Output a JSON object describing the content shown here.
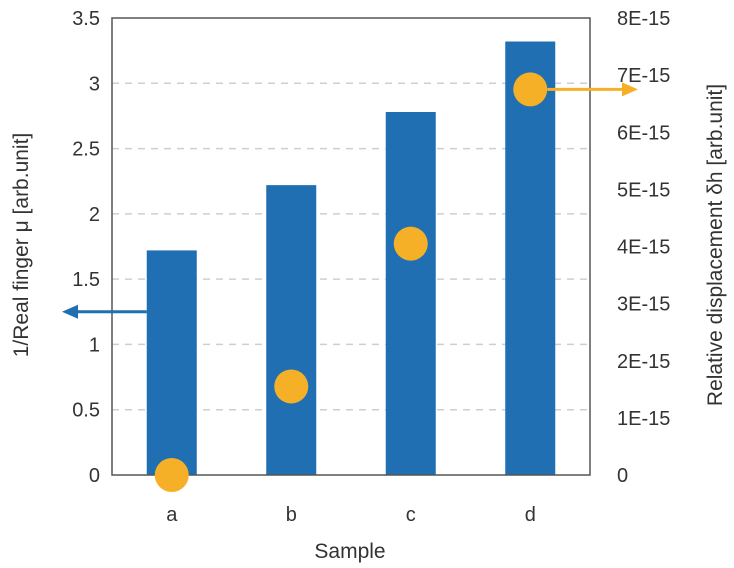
{
  "chart_data": {
    "type": "bar",
    "categories": [
      "a",
      "b",
      "c",
      "d"
    ],
    "xlabel": "Sample",
    "series": [
      {
        "axis": "left",
        "mark": "bar",
        "color": "#1f6fb2",
        "values": [
          1.72,
          2.22,
          2.78,
          3.32
        ]
      },
      {
        "axis": "right",
        "mark": "scatter",
        "color": "#f5b027",
        "values": [
          0,
          1.55e-15,
          4.05e-15,
          6.75e-15
        ]
      }
    ],
    "left_axis": {
      "label": "1/Real finger μ [arb.unit]",
      "range": [
        0,
        3.5
      ],
      "ticks": [
        "0",
        "0.5",
        "1",
        "1.5",
        "2",
        "2.5",
        "3",
        "3.5"
      ],
      "tick_values": [
        0,
        0.5,
        1,
        1.5,
        2,
        2.5,
        3,
        3.5
      ]
    },
    "right_axis": {
      "label": "Relative displacement δh [arb.unit]",
      "range": [
        0,
        8e-15
      ],
      "ticks": [
        "0",
        "1E-15",
        "2E-15",
        "3E-15",
        "4E-15",
        "5E-15",
        "6E-15",
        "7E-15",
        "8E-15"
      ],
      "tick_values": [
        0,
        1e-15,
        2e-15,
        3e-15,
        4e-15,
        5e-15,
        6e-15,
        7e-15,
        8e-15
      ]
    },
    "grid": true,
    "annotations": [
      {
        "type": "arrow",
        "series_index": 0,
        "direction": "left",
        "color": "#1f6fb2"
      },
      {
        "type": "arrow",
        "series_index": 1,
        "direction": "right",
        "color": "#f5b027"
      }
    ]
  }
}
